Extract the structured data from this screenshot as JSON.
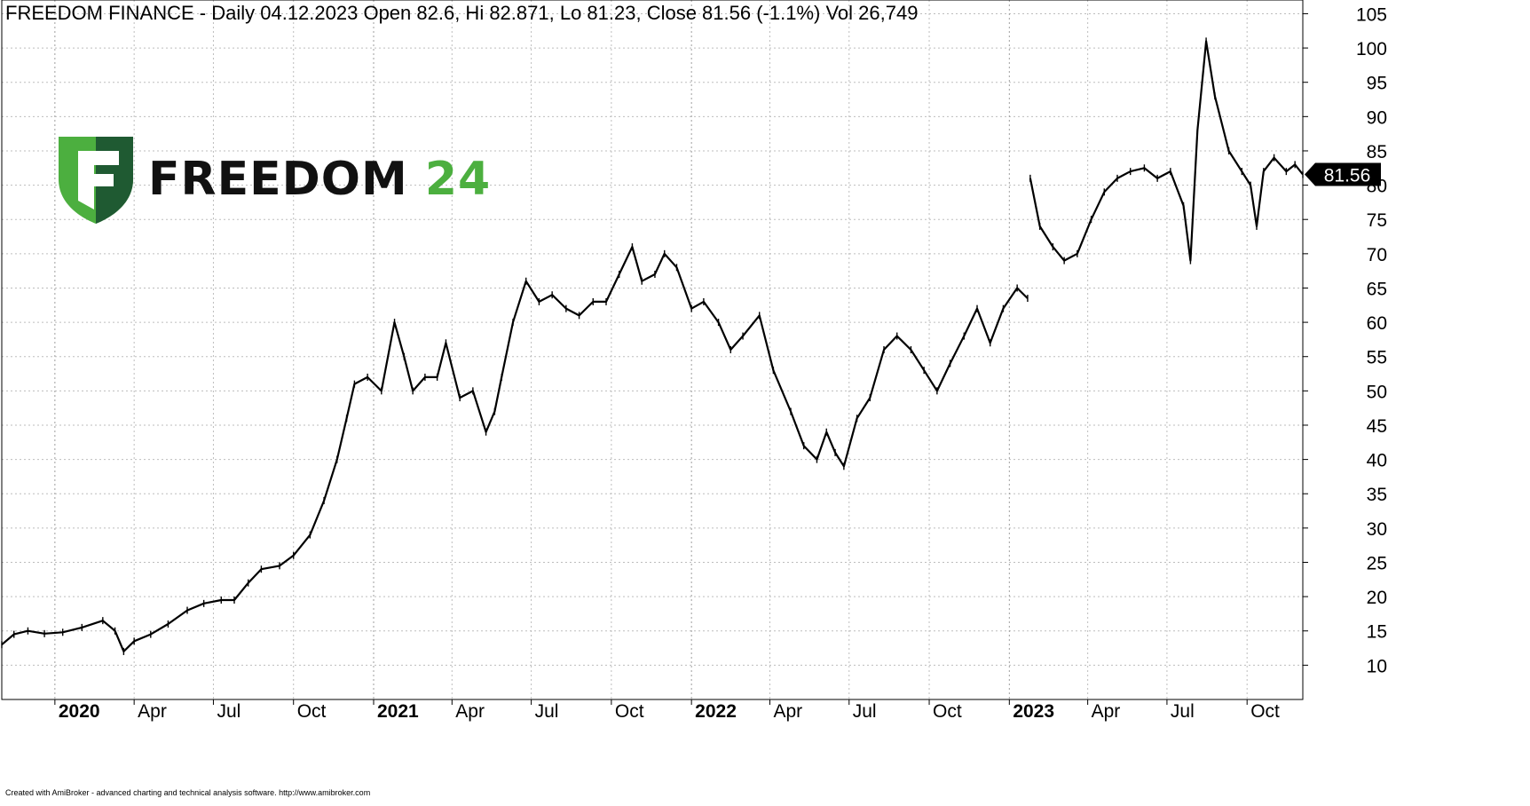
{
  "title": "FREEDOM FINANCE - Daily 04.12.2023 Open 82.6, Hi 82.871, Lo 81.23, Close 81.56 (-1.1%) Vol 26,749",
  "footer": "Created with AmiBroker - advanced charting and technical analysis software. http://www.amibroker.com",
  "logo": {
    "word1": "FREEDOM",
    "word2": "24",
    "colors": {
      "shield_light": "#4caf3f",
      "shield_dark": "#1f5a32",
      "text": "#111111",
      "text_accent": "#4caf3f"
    }
  },
  "chart_data": {
    "type": "line",
    "style": "daily price bars (OHLC)",
    "x_start": "2019-11-01",
    "x_end": "2023-12-04",
    "ylim": [
      5,
      107
    ],
    "y_ticks": [
      10,
      15,
      20,
      25,
      30,
      35,
      40,
      45,
      50,
      55,
      60,
      65,
      70,
      75,
      80,
      85,
      90,
      95,
      100,
      105
    ],
    "y_axis_position": "right",
    "grid": true,
    "x_labels": [
      {
        "date": "2020-01-01",
        "label": "2020",
        "major": true
      },
      {
        "date": "2020-04-01",
        "label": "Apr",
        "major": false
      },
      {
        "date": "2020-07-01",
        "label": "Jul",
        "major": false
      },
      {
        "date": "2020-10-01",
        "label": "Oct",
        "major": false
      },
      {
        "date": "2021-01-01",
        "label": "2021",
        "major": true
      },
      {
        "date": "2021-04-01",
        "label": "Apr",
        "major": false
      },
      {
        "date": "2021-07-01",
        "label": "Jul",
        "major": false
      },
      {
        "date": "2021-10-01",
        "label": "Oct",
        "major": false
      },
      {
        "date": "2022-01-01",
        "label": "2022",
        "major": true
      },
      {
        "date": "2022-04-01",
        "label": "Apr",
        "major": false
      },
      {
        "date": "2022-07-01",
        "label": "Jul",
        "major": false
      },
      {
        "date": "2022-10-01",
        "label": "Oct",
        "major": false
      },
      {
        "date": "2023-01-01",
        "label": "2023",
        "major": true
      },
      {
        "date": "2023-04-01",
        "label": "Apr",
        "major": false
      },
      {
        "date": "2023-07-01",
        "label": "Jul",
        "major": false
      },
      {
        "date": "2023-10-01",
        "label": "Oct",
        "major": false
      }
    ],
    "last_close": "81.56",
    "series": [
      {
        "points": [
          [
            "2019-11-01",
            13.0
          ],
          [
            "2019-11-15",
            14.5
          ],
          [
            "2019-12-01",
            15.0
          ],
          [
            "2019-12-20",
            14.6
          ],
          [
            "2020-01-10",
            14.8
          ],
          [
            "2020-02-01",
            15.5
          ],
          [
            "2020-02-25",
            16.5
          ],
          [
            "2020-03-10",
            15.0
          ],
          [
            "2020-03-20",
            12.0
          ],
          [
            "2020-04-01",
            13.5
          ],
          [
            "2020-04-20",
            14.5
          ],
          [
            "2020-05-10",
            16.0
          ],
          [
            "2020-06-01",
            18.0
          ],
          [
            "2020-06-20",
            19.0
          ],
          [
            "2020-07-10",
            19.5
          ],
          [
            "2020-07-25",
            19.5
          ],
          [
            "2020-08-10",
            22.0
          ],
          [
            "2020-08-25",
            24.0
          ],
          [
            "2020-09-15",
            24.5
          ],
          [
            "2020-10-01",
            26.0
          ],
          [
            "2020-10-20",
            29.0
          ],
          [
            "2020-11-05",
            34.0
          ],
          [
            "2020-11-20",
            40.0
          ],
          [
            "2020-12-01",
            46.0
          ],
          [
            "2020-12-10",
            51.0
          ],
          [
            "2020-12-25",
            52.0
          ],
          [
            "2021-01-10",
            50.0
          ],
          [
            "2021-01-25",
            60.0
          ],
          [
            "2021-02-05",
            55.0
          ],
          [
            "2021-02-15",
            50.0
          ],
          [
            "2021-03-01",
            52.0
          ],
          [
            "2021-03-15",
            52.0
          ],
          [
            "2021-03-25",
            57.0
          ],
          [
            "2021-04-10",
            49.0
          ],
          [
            "2021-04-25",
            50.0
          ],
          [
            "2021-05-10",
            44.0
          ],
          [
            "2021-05-20",
            47.0
          ],
          [
            "2021-05-28",
            52.0
          ],
          [
            "2021-06-10",
            60.0
          ],
          [
            "2021-06-25",
            66.0
          ],
          [
            "2021-07-10",
            63.0
          ],
          [
            "2021-07-25",
            64.0
          ],
          [
            "2021-08-10",
            62.0
          ],
          [
            "2021-08-25",
            61.0
          ],
          [
            "2021-09-10",
            63.0
          ],
          [
            "2021-09-25",
            63.0
          ],
          [
            "2021-10-10",
            67.0
          ],
          [
            "2021-10-25",
            71.0
          ],
          [
            "2021-11-05",
            66.0
          ],
          [
            "2021-11-20",
            67.0
          ],
          [
            "2021-12-01",
            70.0
          ],
          [
            "2021-12-15",
            68.0
          ],
          [
            "2022-01-01",
            62.0
          ],
          [
            "2022-01-15",
            63.0
          ],
          [
            "2022-02-01",
            60.0
          ],
          [
            "2022-02-15",
            56.0
          ],
          [
            "2022-03-01",
            58.0
          ],
          [
            "2022-03-20",
            61.0
          ],
          [
            "2022-04-05",
            53.0
          ],
          [
            "2022-04-25",
            47.0
          ],
          [
            "2022-05-10",
            42.0
          ],
          [
            "2022-05-25",
            40.0
          ],
          [
            "2022-06-05",
            44.0
          ],
          [
            "2022-06-15",
            41.0
          ],
          [
            "2022-06-25",
            39.0
          ],
          [
            "2022-07-10",
            46.0
          ],
          [
            "2022-07-25",
            49.0
          ],
          [
            "2022-08-10",
            56.0
          ],
          [
            "2022-08-25",
            58.0
          ],
          [
            "2022-09-10",
            56.0
          ],
          [
            "2022-09-25",
            53.0
          ],
          [
            "2022-10-10",
            50.0
          ],
          [
            "2022-10-25",
            54.0
          ],
          [
            "2022-11-10",
            58.0
          ],
          [
            "2022-11-25",
            62.0
          ],
          [
            "2022-12-10",
            57.0
          ],
          [
            "2022-12-25",
            62.0
          ],
          [
            "2023-01-10",
            65.0
          ],
          [
            "2023-01-22",
            63.5
          ]
        ]
      },
      {
        "points": [
          [
            "2023-01-25",
            81.0
          ],
          [
            "2023-02-05",
            74.0
          ],
          [
            "2023-02-20",
            71.0
          ],
          [
            "2023-03-05",
            69.0
          ],
          [
            "2023-03-20",
            70.0
          ],
          [
            "2023-04-05",
            75.0
          ],
          [
            "2023-04-20",
            79.0
          ],
          [
            "2023-05-05",
            81.0
          ],
          [
            "2023-05-20",
            82.0
          ],
          [
            "2023-06-05",
            82.5
          ],
          [
            "2023-06-20",
            81.0
          ],
          [
            "2023-07-05",
            82.0
          ],
          [
            "2023-07-20",
            77.0
          ],
          [
            "2023-07-28",
            69.0
          ],
          [
            "2023-08-05",
            88.0
          ],
          [
            "2023-08-15",
            101.0
          ],
          [
            "2023-08-25",
            93.0
          ],
          [
            "2023-09-10",
            85.0
          ],
          [
            "2023-09-25",
            82.0
          ],
          [
            "2023-10-05",
            80.0
          ],
          [
            "2023-10-12",
            74.0
          ],
          [
            "2023-10-20",
            82.0
          ],
          [
            "2023-11-01",
            84.0
          ],
          [
            "2023-11-15",
            82.0
          ],
          [
            "2023-11-25",
            83.0
          ],
          [
            "2023-12-04",
            81.56
          ]
        ]
      }
    ]
  }
}
